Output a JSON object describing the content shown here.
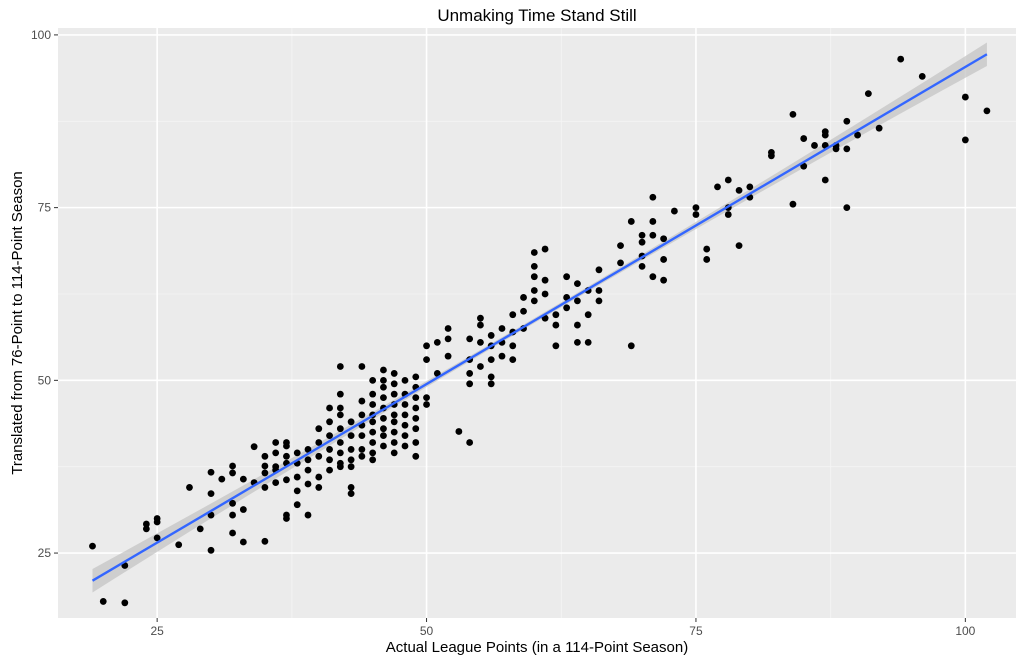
{
  "chart_data": {
    "type": "scatter",
    "title": "Unmaking Time Stand Still",
    "xlabel": "Actual League Points (in a 114-Point Season)",
    "ylabel": "Translated from 76-Point to 114-Point Season",
    "xlim": [
      15.8,
      104.7
    ],
    "ylim": [
      15.6,
      101.0
    ],
    "xticks": [
      25,
      50,
      75,
      100
    ],
    "yticks": [
      25,
      50,
      75,
      100
    ],
    "grid": true,
    "panel_background": "#ebebeb",
    "point_color": "#000000",
    "fit_line_color": "#3366ff",
    "fit_band_color": "#c4c4c4",
    "fit_line": {
      "method": "linear",
      "x": [
        19,
        102
      ],
      "y": [
        21.0,
        97.2
      ]
    },
    "series": [
      {
        "points": [
          [
            19,
            26
          ],
          [
            20,
            18
          ],
          [
            22,
            23.2
          ],
          [
            22,
            17.8
          ],
          [
            24,
            28.5
          ],
          [
            24,
            29.2
          ],
          [
            25,
            30
          ],
          [
            25,
            29.5
          ],
          [
            25,
            27.2
          ],
          [
            27,
            26.2
          ],
          [
            28,
            34.5
          ],
          [
            29,
            28.5
          ],
          [
            30,
            25.4
          ],
          [
            30,
            30.5
          ],
          [
            30,
            33.6
          ],
          [
            30,
            36.7
          ],
          [
            31,
            35.7
          ],
          [
            32,
            37.6
          ],
          [
            32,
            36.6
          ],
          [
            32,
            32.2
          ],
          [
            32,
            30.5
          ],
          [
            32,
            27.9
          ],
          [
            33,
            35.7
          ],
          [
            33,
            26.6
          ],
          [
            33,
            31.3
          ],
          [
            34,
            40.4
          ],
          [
            34,
            35.2
          ],
          [
            35,
            26.7
          ],
          [
            35,
            34.5
          ],
          [
            35,
            36.6
          ],
          [
            35,
            37.6
          ],
          [
            35,
            39
          ],
          [
            36,
            35.2
          ],
          [
            36,
            37
          ],
          [
            36,
            37.5
          ],
          [
            36,
            39.5
          ],
          [
            36,
            41
          ],
          [
            37,
            30
          ],
          [
            37,
            30.5
          ],
          [
            37,
            35.6
          ],
          [
            37,
            38
          ],
          [
            37,
            39
          ],
          [
            37,
            40.5
          ],
          [
            37,
            41
          ],
          [
            38,
            39.5
          ],
          [
            38,
            38
          ],
          [
            38,
            36
          ],
          [
            38,
            34
          ],
          [
            38,
            32
          ],
          [
            39,
            40
          ],
          [
            39,
            38.5
          ],
          [
            39,
            37
          ],
          [
            39,
            35
          ],
          [
            39,
            30.5
          ],
          [
            40,
            41
          ],
          [
            40,
            43
          ],
          [
            40,
            39
          ],
          [
            40,
            36
          ],
          [
            40,
            34.5
          ],
          [
            41,
            42
          ],
          [
            41,
            40
          ],
          [
            41,
            38.5
          ],
          [
            41,
            37
          ],
          [
            41,
            44
          ],
          [
            41,
            46
          ],
          [
            42,
            52
          ],
          [
            42,
            48
          ],
          [
            42,
            46
          ],
          [
            42,
            45
          ],
          [
            42,
            43
          ],
          [
            42,
            41
          ],
          [
            42,
            39.5
          ],
          [
            42,
            38
          ],
          [
            42,
            37.5
          ],
          [
            43,
            44
          ],
          [
            43,
            42
          ],
          [
            43,
            40
          ],
          [
            43,
            38.5
          ],
          [
            43,
            37.5
          ],
          [
            43,
            33.6
          ],
          [
            43,
            34.5
          ],
          [
            44,
            52
          ],
          [
            44,
            47
          ],
          [
            44,
            45
          ],
          [
            44,
            43.5
          ],
          [
            44,
            42
          ],
          [
            44,
            40
          ],
          [
            44,
            39
          ],
          [
            45,
            50
          ],
          [
            45,
            48
          ],
          [
            45,
            46.5
          ],
          [
            45,
            45
          ],
          [
            45,
            44
          ],
          [
            45,
            42.5
          ],
          [
            45,
            41
          ],
          [
            45,
            39.5
          ],
          [
            45,
            38.5
          ],
          [
            46,
            51.5
          ],
          [
            46,
            50
          ],
          [
            46,
            49
          ],
          [
            46,
            47.5
          ],
          [
            46,
            46
          ],
          [
            46,
            44.5
          ],
          [
            46,
            43
          ],
          [
            46,
            42
          ],
          [
            46,
            40.5
          ],
          [
            47,
            51
          ],
          [
            47,
            49.5
          ],
          [
            47,
            48
          ],
          [
            47,
            46.5
          ],
          [
            47,
            45
          ],
          [
            47,
            44
          ],
          [
            47,
            42.5
          ],
          [
            47,
            41
          ],
          [
            47,
            39.5
          ],
          [
            48,
            50
          ],
          [
            48,
            48
          ],
          [
            48,
            46.5
          ],
          [
            48,
            45
          ],
          [
            48,
            43.5
          ],
          [
            48,
            42
          ],
          [
            48,
            40.5
          ],
          [
            49,
            50.5
          ],
          [
            49,
            49
          ],
          [
            49,
            47.5
          ],
          [
            49,
            46
          ],
          [
            49,
            44.5
          ],
          [
            49,
            43
          ],
          [
            49,
            41
          ],
          [
            49,
            39
          ],
          [
            50,
            55
          ],
          [
            50,
            53
          ],
          [
            50,
            47.5
          ],
          [
            50,
            46.5
          ],
          [
            51,
            55.5
          ],
          [
            51,
            51
          ],
          [
            52,
            57.5
          ],
          [
            52,
            56
          ],
          [
            52,
            53.5
          ],
          [
            53,
            42.6
          ],
          [
            54,
            41
          ],
          [
            54,
            49.5
          ],
          [
            54,
            51
          ],
          [
            54,
            53
          ],
          [
            54,
            56
          ],
          [
            55,
            55.5
          ],
          [
            55,
            59
          ],
          [
            55,
            58
          ],
          [
            55,
            52
          ],
          [
            56,
            56.5
          ],
          [
            56,
            55
          ],
          [
            56,
            53
          ],
          [
            56,
            50.5
          ],
          [
            56,
            49.5
          ],
          [
            57,
            57.5
          ],
          [
            57,
            55.5
          ],
          [
            57,
            53.5
          ],
          [
            58,
            59.5
          ],
          [
            58,
            57
          ],
          [
            58,
            55
          ],
          [
            58,
            53
          ],
          [
            59,
            62
          ],
          [
            59,
            60
          ],
          [
            59,
            57.5
          ],
          [
            60,
            61.5
          ],
          [
            60,
            63
          ],
          [
            60,
            65
          ],
          [
            60,
            66.5
          ],
          [
            60,
            68.5
          ],
          [
            61,
            69
          ],
          [
            61,
            64.5
          ],
          [
            61,
            62.5
          ],
          [
            61,
            59
          ],
          [
            62,
            59.5
          ],
          [
            62,
            55
          ],
          [
            62,
            58
          ],
          [
            63,
            62
          ],
          [
            63,
            60.5
          ],
          [
            63,
            65
          ],
          [
            64,
            64
          ],
          [
            64,
            61.5
          ],
          [
            64,
            58
          ],
          [
            64,
            55.5
          ],
          [
            65,
            63
          ],
          [
            65,
            59.5
          ],
          [
            65,
            55.5
          ],
          [
            66,
            66
          ],
          [
            66,
            63
          ],
          [
            66,
            61.5
          ],
          [
            68,
            69.5
          ],
          [
            68,
            67
          ],
          [
            69,
            73
          ],
          [
            69,
            55
          ],
          [
            70,
            71
          ],
          [
            70,
            70
          ],
          [
            70,
            68
          ],
          [
            70,
            66.5
          ],
          [
            71,
            76.5
          ],
          [
            71,
            73
          ],
          [
            71,
            71
          ],
          [
            71,
            65
          ],
          [
            72,
            64.5
          ],
          [
            72,
            67.5
          ],
          [
            72,
            70.5
          ],
          [
            73,
            74.5
          ],
          [
            75,
            75
          ],
          [
            75,
            74
          ],
          [
            76,
            69
          ],
          [
            76,
            67.5
          ],
          [
            77,
            78
          ],
          [
            78,
            79
          ],
          [
            78,
            75
          ],
          [
            78,
            74
          ],
          [
            79,
            77.5
          ],
          [
            79,
            69.5
          ],
          [
            80,
            78
          ],
          [
            80,
            76.5
          ],
          [
            82,
            83
          ],
          [
            82,
            82.5
          ],
          [
            84,
            88.5
          ],
          [
            84,
            75.5
          ],
          [
            85,
            85
          ],
          [
            85,
            81
          ],
          [
            86,
            84
          ],
          [
            87,
            86
          ],
          [
            87,
            85.5
          ],
          [
            87,
            84
          ],
          [
            87,
            79
          ],
          [
            88,
            84
          ],
          [
            88,
            83.5
          ],
          [
            89,
            87.5
          ],
          [
            89,
            83.5
          ],
          [
            89,
            75
          ],
          [
            90,
            85.5
          ],
          [
            91,
            91.5
          ],
          [
            92,
            86.5
          ],
          [
            94,
            96.5
          ],
          [
            96,
            94
          ],
          [
            100,
            91
          ],
          [
            100,
            84.8
          ],
          [
            102,
            89
          ]
        ]
      }
    ]
  }
}
